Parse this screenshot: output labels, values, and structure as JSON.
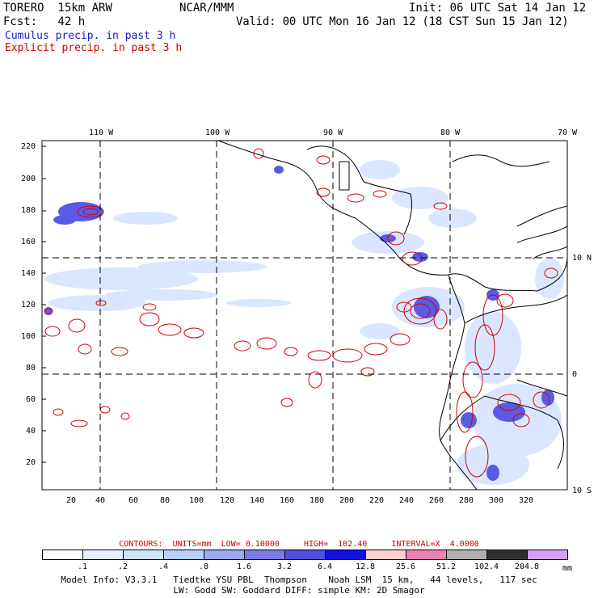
{
  "header": {
    "model": "TORERO  15km ARW",
    "org": "NCAR/MMM",
    "init": "Init: 06 UTC Sat 14 Jan 12",
    "fcst": "Fcst:   42 h",
    "valid": "Valid: 00 UTC Mon 16 Jan 12 (18 CST Sun 15 Jan 12)",
    "legend_cumulus": "Cumulus precip. in past 3 h",
    "legend_explicit": "Explicit precip. in past 3 h",
    "cumulus_color": "#1a1ad0",
    "explicit_color": "#d40000"
  },
  "top_axis": [
    "110 W",
    "100 W",
    "90 W",
    "80 W",
    "70 W"
  ],
  "right_axis": [
    "10 N",
    "0",
    "10 S"
  ],
  "y_axis": [
    "220",
    "200",
    "180",
    "160",
    "140",
    "120",
    "100",
    "80",
    "60",
    "40",
    "20"
  ],
  "x_axis": [
    "20",
    "40",
    "60",
    "80",
    "100",
    "120",
    "140",
    "160",
    "180",
    "200",
    "220",
    "240",
    "260",
    "280",
    "300",
    "320"
  ],
  "contour_info": {
    "text": "CONTOURS:  UNITS=mm  LOW= 0.10000     HIGH=  102.40     INTERVAL=X  4.0000"
  },
  "colorbar": {
    "labels": [
      ".1",
      ".2",
      ".4",
      ".8",
      "1.6",
      "3.2",
      "6.4",
      "12.8",
      "25.6",
      "51.2",
      "102.4",
      "204.8"
    ],
    "unit": "mm",
    "colors": [
      "#ffffff",
      "#e8f0ff",
      "#d0e4ff",
      "#b8d0ff",
      "#9aaaf0",
      "#7a7ae8",
      "#5050e0",
      "#1010e0",
      "#ffd0d0",
      "#f080b0",
      "#b0b0b0",
      "#303030",
      "#d8a0f8"
    ]
  },
  "footer": {
    "line1": "Model Info: V3.3.1   Tiedtke YSU PBL  Thompson    Noah LSM  15 km,   44 levels,   117 sec",
    "line2": "LW: Godd SW: Goddard DIFF: simple KM: 2D Smagor"
  }
}
